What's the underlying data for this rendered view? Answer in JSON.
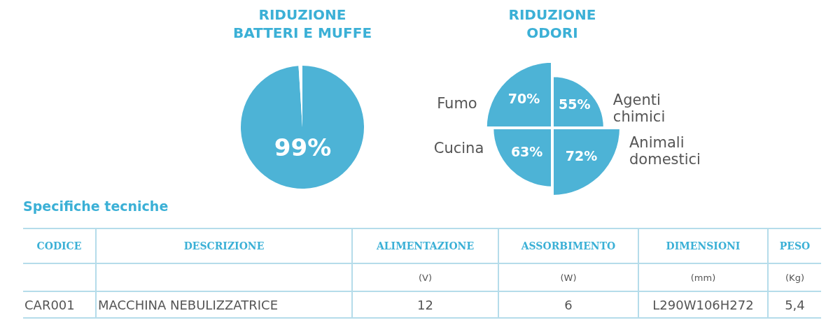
{
  "chart_data": [
    {
      "type": "pie",
      "title": "RIDUZIONE BATTERI E MUFFE",
      "categories": [
        null,
        null
      ],
      "values": [
        99,
        1
      ],
      "colors": [
        "#4db3d6",
        "#ffffff"
      ],
      "value_labels": [
        "99%",
        null
      ]
    },
    {
      "type": "other",
      "title": "RIDUZIONE ODORI",
      "categories": [
        "Agenti chimici",
        "Animali domestici",
        "Cucina",
        "Fumo"
      ],
      "values": [
        55,
        72,
        63,
        70
      ],
      "color": "#4db3d6",
      "value_labels": [
        "55%",
        "72%",
        "63%",
        "70%"
      ]
    },
    {
      "type": "other",
      "title": "Specifiche tecniche",
      "categories": [
        "CODICE",
        "DESCRIZIONE",
        "ALIMENTAZIONE",
        "ASSORBIMENTO",
        "DIMENSIONI",
        "PESO"
      ],
      "cell_labels": [
        [
          null,
          null,
          "(V)",
          "(W)",
          "(mm)",
          "(Kg)"
        ],
        [
          "CAR001",
          "MACCHINA NEBULIZZATRICE",
          "12",
          "6",
          "L290W106H272",
          "5,4"
        ]
      ]
    }
  ]
}
